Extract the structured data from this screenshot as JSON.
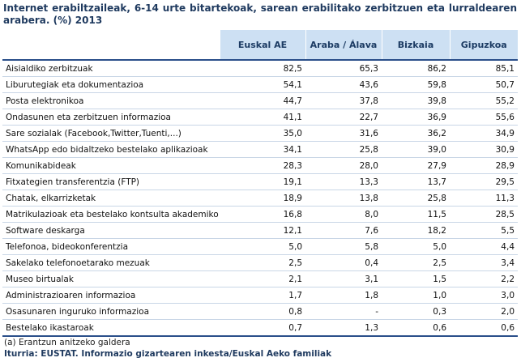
{
  "title": "Internet erabiltzaileak, 6-14 urte bitartekoak, sarean erabilitako zerbitzuen eta lurraldearen arabera. (%) 2013",
  "columns": [
    "Euskal AE",
    "Araba / Álava",
    "Bizkaia",
    "Gipuzkoa"
  ],
  "rows": [
    {
      "label": "Aisialdiko zerbitzuak",
      "values": [
        "82,5",
        "65,3",
        "86,2",
        "85,1"
      ]
    },
    {
      "label": "Liburutegiak eta dokumentazioa",
      "values": [
        "54,1",
        "43,6",
        "59,8",
        "50,7"
      ]
    },
    {
      "label": "Posta elektronikoa",
      "values": [
        "44,7",
        "37,8",
        "39,8",
        "55,2"
      ]
    },
    {
      "label": "Ondasunen eta zerbitzuen informazioa",
      "values": [
        "41,1",
        "22,7",
        "36,9",
        "55,6"
      ]
    },
    {
      "label": "Sare sozialak (Facebook,Twitter,Tuenti,...)",
      "values": [
        "35,0",
        "31,6",
        "36,2",
        "34,9"
      ]
    },
    {
      "label": "WhatsApp edo bidaltzeko bestelako aplikazioak",
      "values": [
        "34,1",
        "25,8",
        "39,0",
        "30,9"
      ]
    },
    {
      "label": "Komunikabideak",
      "values": [
        "28,3",
        "28,0",
        "27,9",
        "28,9"
      ]
    },
    {
      "label": "Fitxategien transferentzia (FTP)",
      "values": [
        "19,1",
        "13,3",
        "13,7",
        "29,5"
      ]
    },
    {
      "label": "Chatak, elkarrizketak",
      "values": [
        "18,9",
        "13,8",
        "25,8",
        "11,3"
      ]
    },
    {
      "label": "Matrikulazioak eta bestelako kontsulta akademiko",
      "values": [
        "16,8",
        "8,0",
        "11,5",
        "28,5"
      ]
    },
    {
      "label": "Software deskarga",
      "values": [
        "12,1",
        "7,6",
        "18,2",
        "5,5"
      ]
    },
    {
      "label": "Telefonoa, bideokonferentzia",
      "values": [
        "5,0",
        "5,8",
        "5,0",
        "4,4"
      ]
    },
    {
      "label": "Sakelako telefonoetarako mezuak",
      "values": [
        "2,5",
        "0,4",
        "2,5",
        "3,4"
      ]
    },
    {
      "label": "Museo birtualak",
      "values": [
        "2,1",
        "3,1",
        "1,5",
        "2,2"
      ]
    },
    {
      "label": "Administrazioaren informazioa",
      "values": [
        "1,7",
        "1,8",
        "1,0",
        "3,0"
      ]
    },
    {
      "label": "Osasunaren inguruko informazioa",
      "values": [
        "0,8",
        "-",
        "0,3",
        "2,0"
      ]
    },
    {
      "label": "Bestelako ikastaroak",
      "values": [
        "0,7",
        "1,3",
        "0,6",
        "0,6"
      ]
    }
  ],
  "note": "(a) Erantzun anitzeko galdera",
  "source": "Iturria: EUSTAT. Informazio gizartearen inkesta/Euskal Aeko familiak",
  "colors": {
    "header_bg": "#cde0f3",
    "header_text": "#1c3b63",
    "rule": "#2a4f8a",
    "row_rule": "#c9d6e6"
  }
}
